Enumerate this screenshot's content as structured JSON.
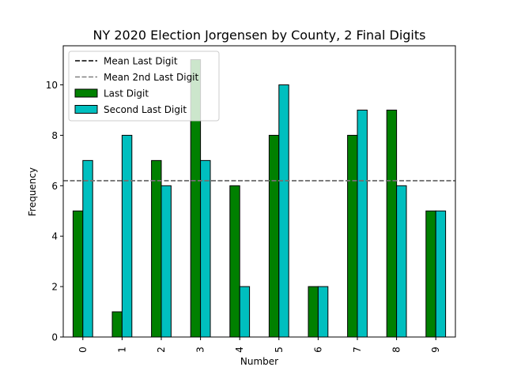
{
  "chart_data": {
    "type": "bar",
    "title": "NY 2020 Election Jorgensen by County, 2 Final Digits",
    "xlabel": "Number",
    "ylabel": "Frequency",
    "categories": [
      "0",
      "1",
      "2",
      "3",
      "4",
      "5",
      "6",
      "7",
      "8",
      "9"
    ],
    "series": [
      {
        "name": "Last Digit",
        "color": "#008000",
        "values": [
          5,
          1,
          7,
          11,
          6,
          8,
          2,
          8,
          9,
          5
        ]
      },
      {
        "name": "Second Last Digit",
        "color": "#00BFBF",
        "values": [
          7,
          8,
          6,
          7,
          2,
          10,
          2,
          9,
          6,
          5
        ]
      }
    ],
    "reference_lines": [
      {
        "name": "Mean Last Digit",
        "value": 6.2,
        "color": "#000000",
        "style": "dashed"
      },
      {
        "name": "Mean 2nd Last Digit",
        "value": 6.2,
        "color": "#808080",
        "style": "dashed"
      }
    ],
    "ylim": [
      0,
      11.55
    ],
    "yticks": [
      0,
      2,
      4,
      6,
      8,
      10
    ],
    "grid": false,
    "legend_position": "top-left"
  }
}
